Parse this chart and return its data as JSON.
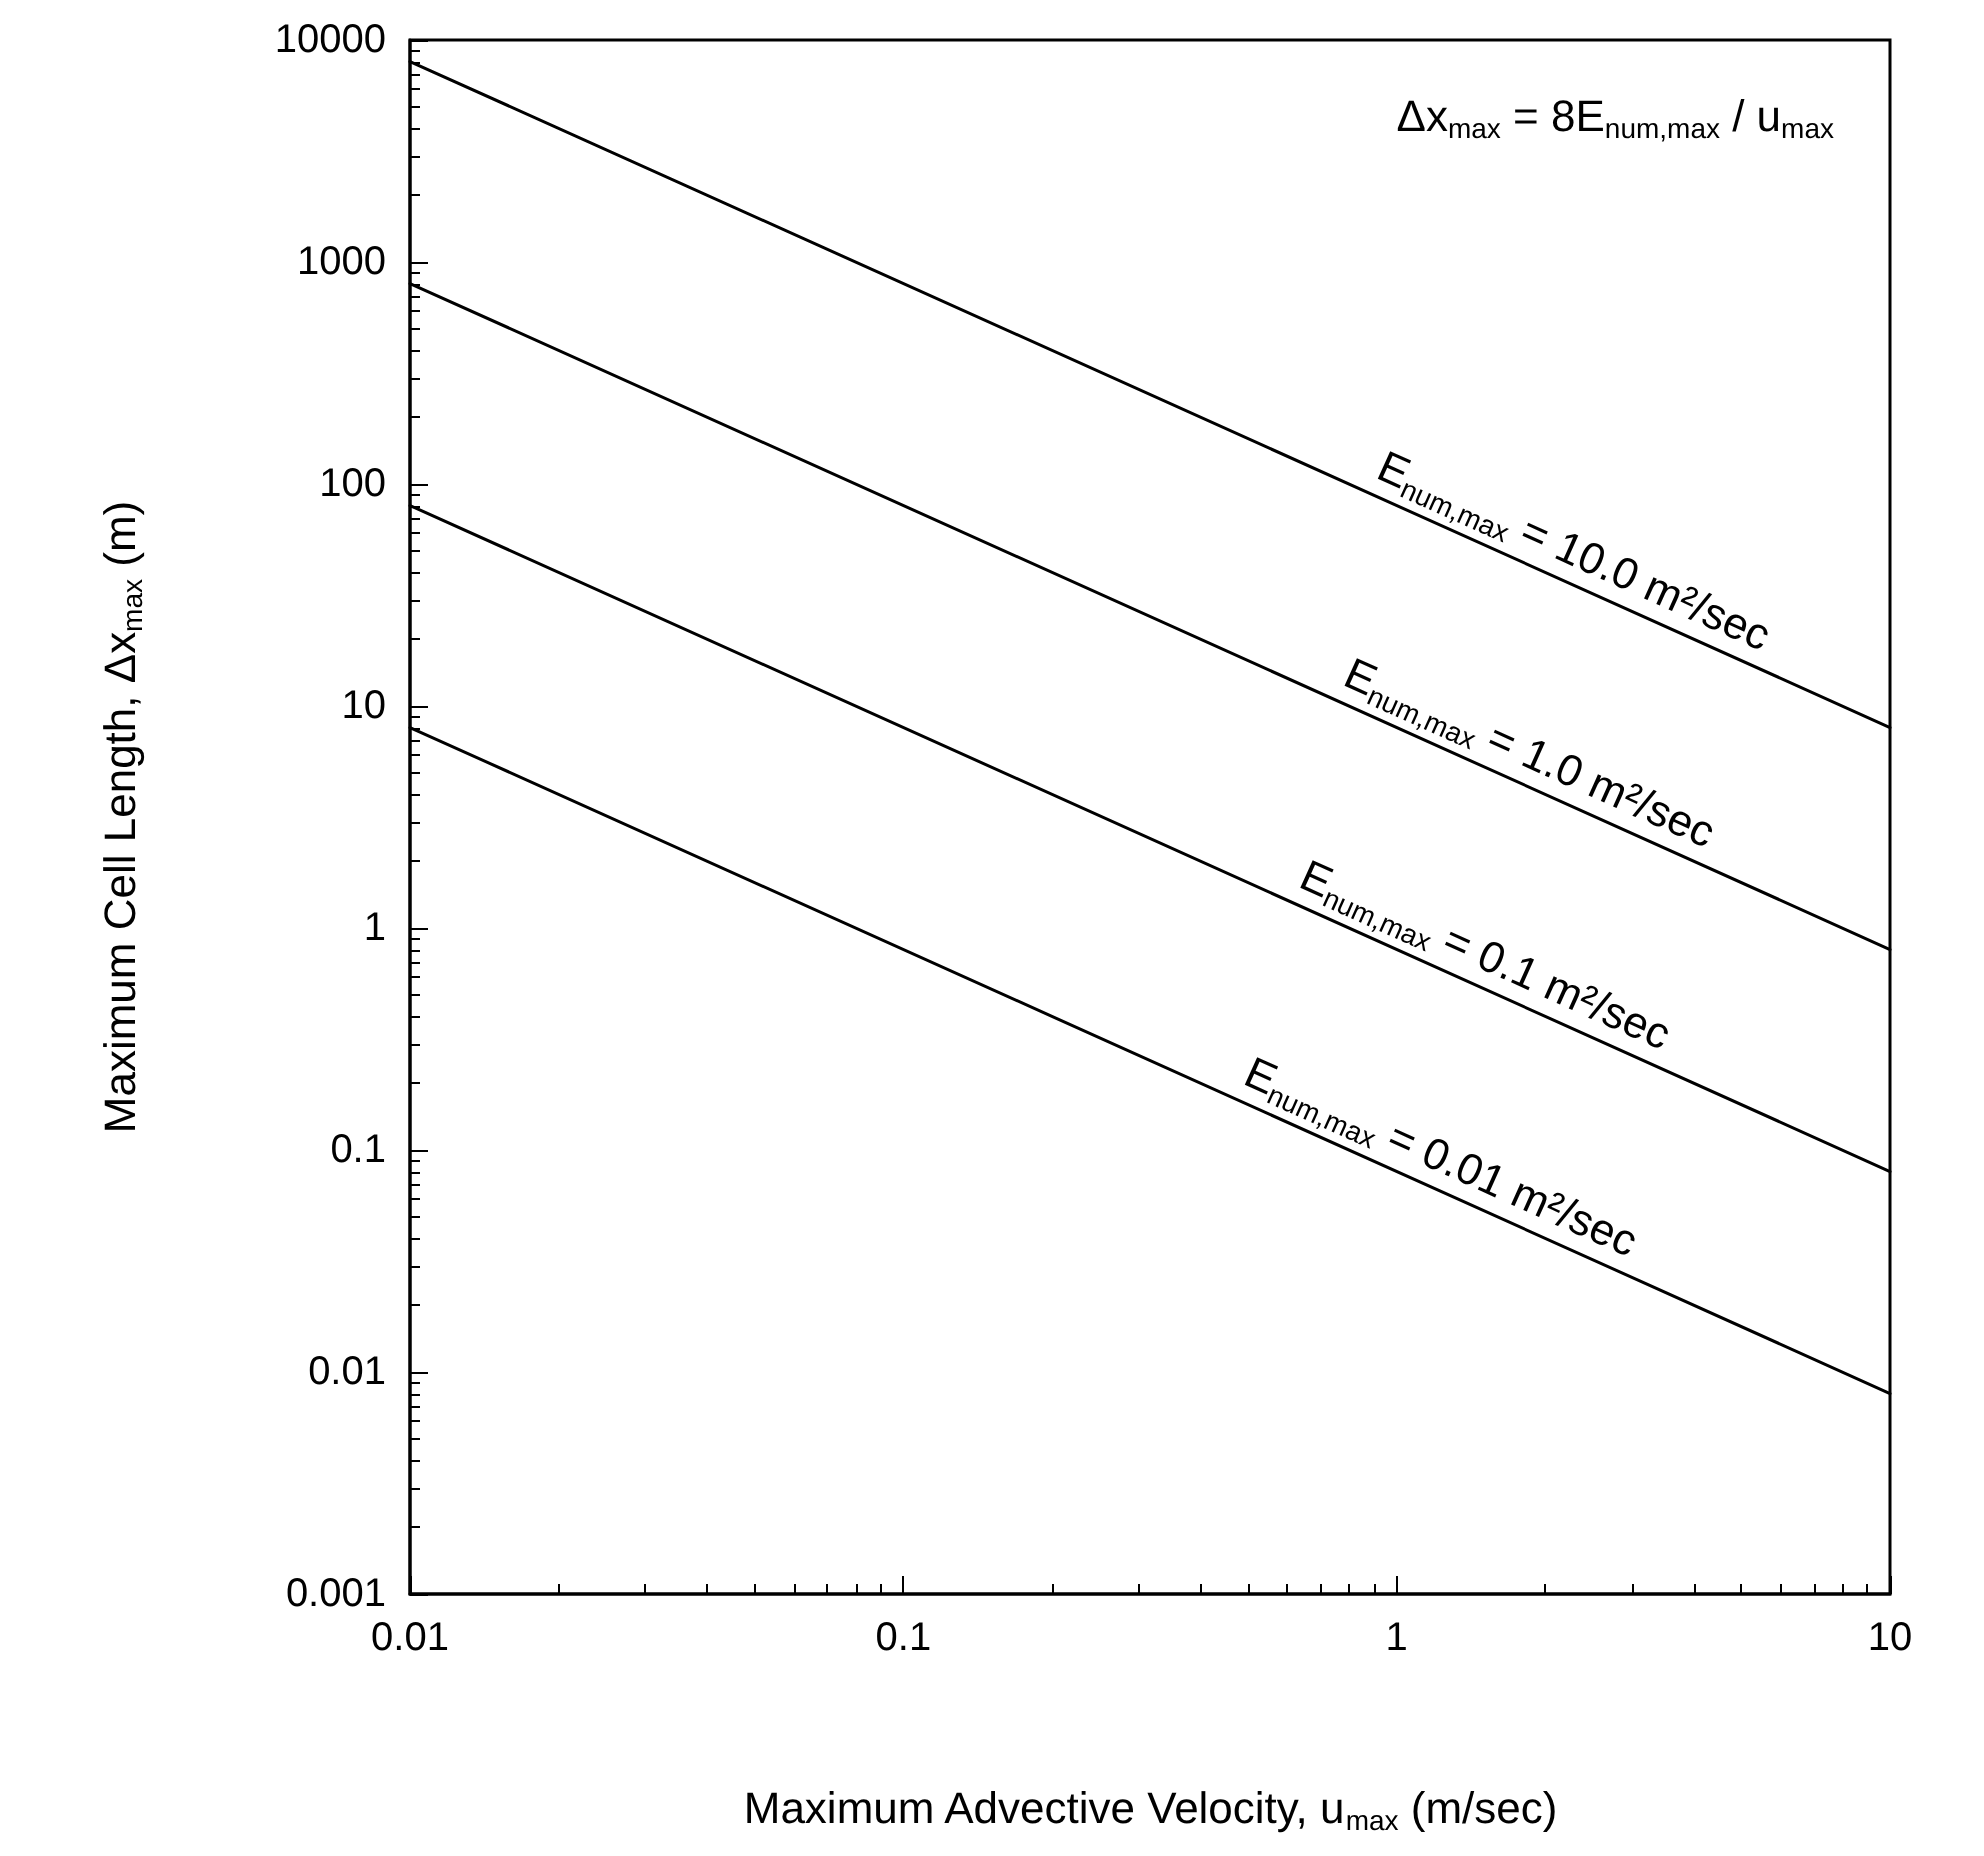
{
  "chart_data": {
    "type": "line",
    "xlabel": "Maximum Advective Velocity, u$_{max}$ (m/sec)",
    "ylabel": "Maximum Cell Length, Δx$_{max}$ (m)",
    "x": [
      0.01,
      10
    ],
    "series": [
      {
        "name": "E$_{num,max}$ = 10.0 m²/sec",
        "color": "#000000",
        "values": [
          8000,
          8
        ]
      },
      {
        "name": "E$_{num,max}$ = 1.0 m²/sec",
        "color": "#000000",
        "values": [
          800,
          0.8
        ]
      },
      {
        "name": "E$_{num,max}$ = 0.1 m²/sec",
        "color": "#000000",
        "values": [
          80,
          0.08
        ]
      },
      {
        "name": "E$_{num,max}$ = 0.01 m²/sec",
        "color": "#000000",
        "values": [
          8,
          0.008
        ]
      }
    ],
    "log": "xy",
    "xlim": [
      0.01,
      10
    ],
    "xticks": [
      0.01,
      0.1,
      1,
      10
    ],
    "ylim": [
      0.001,
      10000
    ],
    "yticks": [
      0.001,
      0.01,
      0.1,
      1,
      10,
      100,
      1000,
      10000
    ],
    "marker": "none",
    "line_style": "solid",
    "annotations": [
      "Δx$_{max}$ = 8E$_{num,max}$ / u$_{max}$"
    ]
  }
}
